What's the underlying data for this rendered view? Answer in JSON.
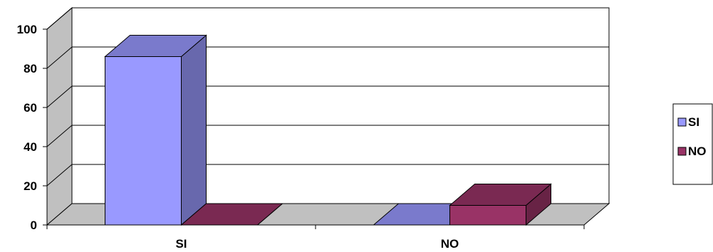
{
  "chart_data": {
    "type": "bar",
    "style": "3d-clustered-column",
    "categories": [
      "SI",
      "NO"
    ],
    "series": [
      {
        "name": "SI",
        "values": [
          86,
          0
        ],
        "color": "#9999FF"
      },
      {
        "name": "NO",
        "values": [
          0,
          10
        ],
        "color": "#993366"
      }
    ],
    "yticks": [
      0,
      20,
      40,
      60,
      80,
      100
    ],
    "ylim": [
      0,
      100
    ],
    "grid": true,
    "legend_position": "right",
    "title": "",
    "xlabel": "",
    "ylabel": ""
  },
  "colors": {
    "wall": "#FFFFFF",
    "side_wall": "#C0C0C0",
    "floor": "#C0C0C0",
    "grid": "#000000"
  }
}
